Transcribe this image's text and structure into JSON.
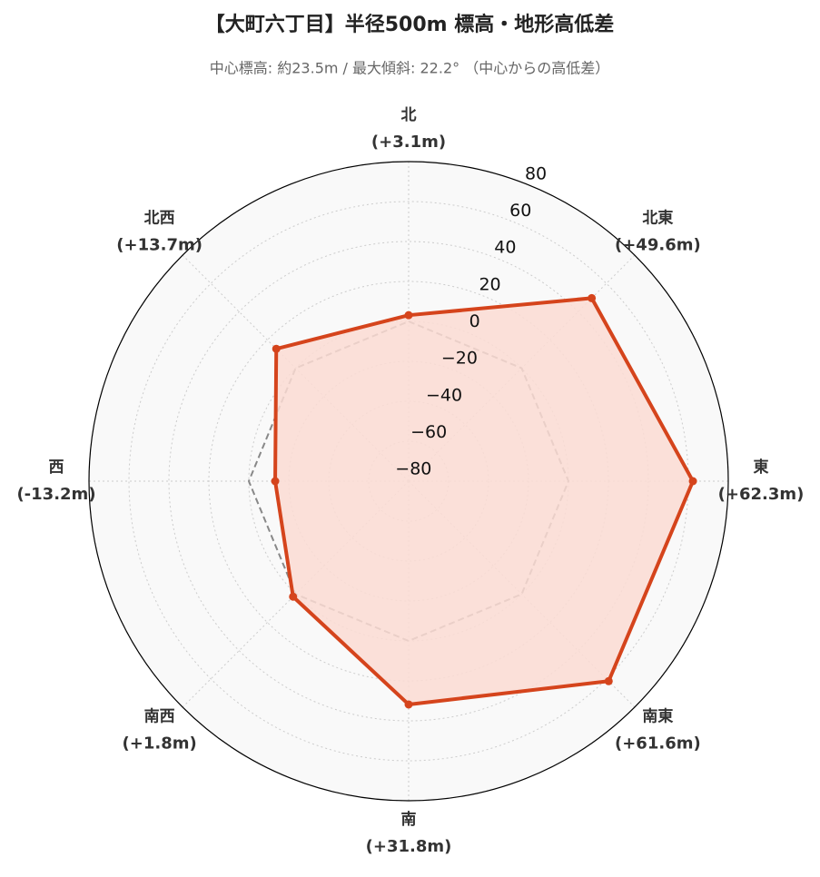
{
  "chart_data": {
    "type": "radar",
    "title": "【大町六丁目】半径500m 標高・地形高低差",
    "subtitle": "中心標高: 約23.5m / 最大傾斜: 22.2° （中心からの高低差）",
    "categories": [
      "北",
      "北東",
      "東",
      "南東",
      "南",
      "南西",
      "西",
      "北西"
    ],
    "series": [
      {
        "color": "#d5441c",
        "fill": "#fbdcd4",
        "values": [
          3.1,
          49.6,
          62.3,
          61.6,
          31.8,
          1.8,
          -13.2,
          13.7
        ],
        "value_labels": [
          "(+3.1m)",
          "(+49.6m)",
          "(+62.3m)",
          "(+61.6m)",
          "(+31.8m)",
          "(+1.8m)",
          "(-13.2m)",
          "(+13.7m)"
        ]
      }
    ],
    "reference_value": 0,
    "reference_color": "#888888",
    "ylim": [
      -80,
      80
    ],
    "yticks": [
      {
        "value": -80,
        "label": "−80"
      },
      {
        "value": -60,
        "label": "−60"
      },
      {
        "value": -40,
        "label": "−40"
      },
      {
        "value": -20,
        "label": "−20"
      },
      0,
      20,
      40,
      60,
      80
    ],
    "grid": true
  }
}
